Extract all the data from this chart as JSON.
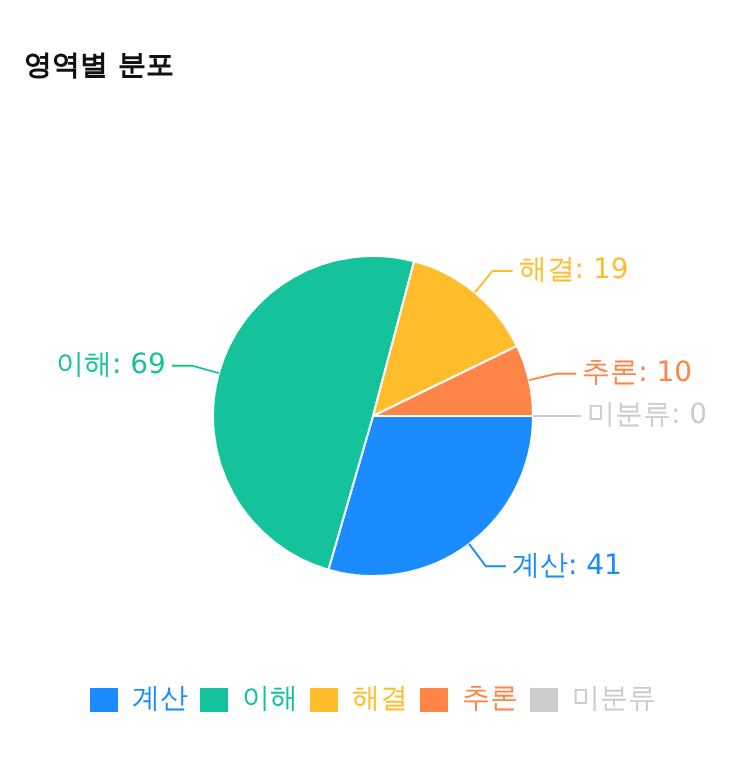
{
  "chart_data": {
    "type": "pie",
    "title": "영역별 분포",
    "categories": [
      "계산",
      "이해",
      "해결",
      "추론",
      "미분류"
    ],
    "values": [
      41,
      69,
      19,
      10,
      0
    ],
    "value_labels": [
      "계산: 41",
      "이해: 69",
      "해결: 19",
      "추론: 10",
      "미분류: 0"
    ],
    "colors": [
      "#1a8cff",
      "#14c29b",
      "#ffbc2b",
      "#ff8447",
      "#cccccc"
    ],
    "legend": "bottom"
  }
}
